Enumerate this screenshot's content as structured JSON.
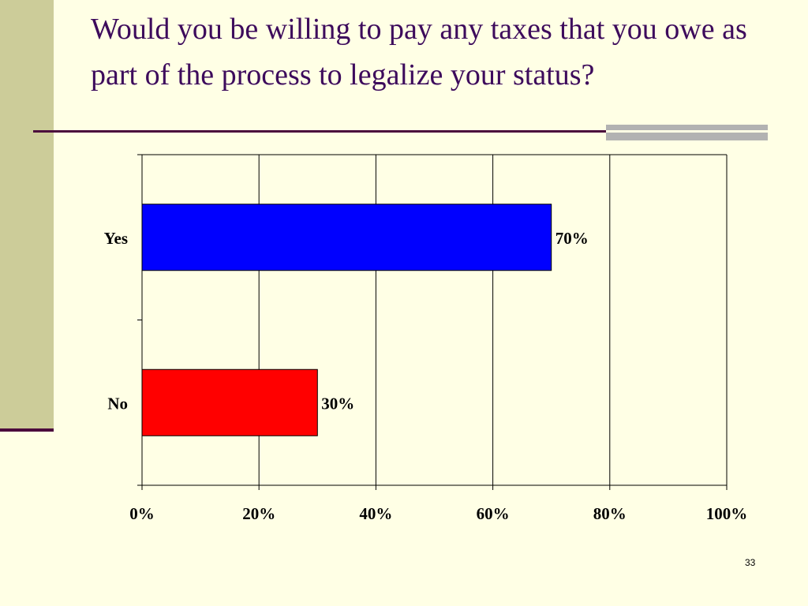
{
  "slide": {
    "title": "Would you be willing to pay any taxes that you owe as part of the process to legalize your status?",
    "page_number": "33"
  },
  "chart_data": {
    "type": "bar",
    "orientation": "horizontal",
    "categories": [
      "Yes",
      "No"
    ],
    "values": [
      70,
      30
    ],
    "value_labels": [
      "70%",
      "30%"
    ],
    "colors": [
      "#0000FF",
      "#FF0000"
    ],
    "xlim": [
      0,
      100
    ],
    "x_ticks": [
      0,
      20,
      40,
      60,
      80,
      100
    ],
    "x_tick_labels": [
      "0%",
      "20%",
      "40%",
      "60%",
      "80%",
      "100%"
    ],
    "grid": "vertical",
    "legend": "none"
  }
}
